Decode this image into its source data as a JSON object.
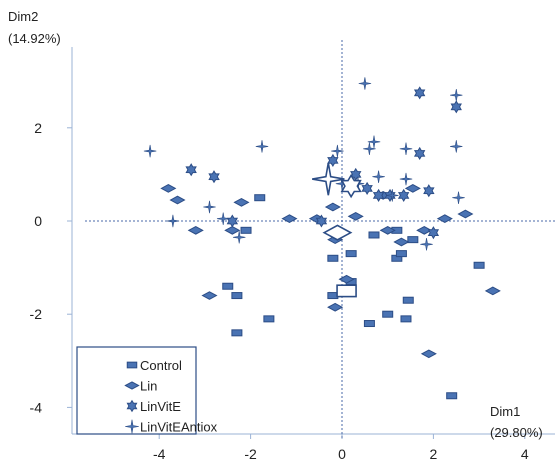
{
  "chart_data": {
    "type": "scatter",
    "title": "",
    "xlabel_lines": [
      "Dim1",
      "(29.80%)"
    ],
    "ylabel_lines": [
      "Dim2",
      "(14.92%)"
    ],
    "xlim": [
      -4.4,
      4.6
    ],
    "ylim": [
      -4.4,
      3.8
    ],
    "xticks": [
      -4,
      -2,
      0,
      2,
      4
    ],
    "yticks": [
      -4,
      -2,
      0,
      2
    ],
    "reference_lines": "dashed lines at x=0 and y=0",
    "grid": false,
    "legend_position": "bottom-left",
    "colors": {
      "series": "#4a73b3",
      "stroke": "#2c4d86",
      "centroid": "#4a73b3"
    },
    "series": [
      {
        "name": "Control",
        "marker": "rect",
        "points": [
          [
            -1.8,
            0.5
          ],
          [
            -2.1,
            -0.2
          ],
          [
            -2.5,
            -1.4
          ],
          [
            -2.3,
            -1.6
          ],
          [
            -2.3,
            -2.4
          ],
          [
            -1.6,
            -2.1
          ],
          [
            -0.2,
            -0.8
          ],
          [
            -0.2,
            -1.6
          ],
          [
            0.2,
            -1.3
          ],
          [
            0.2,
            -0.7
          ],
          [
            0.6,
            -2.2
          ],
          [
            0.7,
            -0.3
          ],
          [
            1.0,
            -2.0
          ],
          [
            1.2,
            -0.2
          ],
          [
            1.2,
            -0.8
          ],
          [
            1.3,
            -0.7
          ],
          [
            1.4,
            -2.1
          ],
          [
            1.45,
            -1.7
          ],
          [
            1.55,
            -0.4
          ],
          [
            2.4,
            -3.75
          ],
          [
            3.0,
            -0.95
          ]
        ]
      },
      {
        "name": "Lin",
        "marker": "diamond",
        "points": [
          [
            -3.8,
            0.7
          ],
          [
            -3.6,
            0.45
          ],
          [
            -3.2,
            -0.2
          ],
          [
            -2.9,
            -1.6
          ],
          [
            -2.4,
            -0.2
          ],
          [
            -2.2,
            0.4
          ],
          [
            -1.15,
            0.05
          ],
          [
            -0.55,
            0.05
          ],
          [
            -0.2,
            0.3
          ],
          [
            -0.15,
            -0.4
          ],
          [
            -0.15,
            -1.85
          ],
          [
            0.1,
            -1.25
          ],
          [
            0.3,
            0.1
          ],
          [
            0.9,
            0.55
          ],
          [
            1.0,
            -0.2
          ],
          [
            1.3,
            -0.45
          ],
          [
            1.55,
            0.7
          ],
          [
            1.8,
            -0.2
          ],
          [
            1.9,
            -2.85
          ],
          [
            2.25,
            0.05
          ],
          [
            2.7,
            0.15
          ],
          [
            3.3,
            -1.5
          ]
        ]
      },
      {
        "name": "LinVitE",
        "marker": "star",
        "points": [
          [
            -3.3,
            1.1
          ],
          [
            -2.8,
            0.95
          ],
          [
            -2.4,
            0.0
          ],
          [
            -0.45,
            0.0
          ],
          [
            -0.2,
            1.3
          ],
          [
            0.3,
            1.0
          ],
          [
            0.55,
            0.7
          ],
          [
            0.8,
            0.55
          ],
          [
            1.05,
            0.55
          ],
          [
            1.35,
            0.55
          ],
          [
            1.7,
            2.75
          ],
          [
            1.7,
            1.45
          ],
          [
            1.9,
            0.65
          ],
          [
            2.0,
            -0.25
          ],
          [
            2.5,
            2.45
          ]
        ]
      },
      {
        "name": "LinVitEAntiox",
        "marker": "plus",
        "points": [
          [
            -4.2,
            1.5
          ],
          [
            -3.7,
            0.0
          ],
          [
            -2.9,
            0.3
          ],
          [
            -2.6,
            0.05
          ],
          [
            -2.25,
            -0.35
          ],
          [
            -1.75,
            1.6
          ],
          [
            -0.1,
            1.5
          ],
          [
            0.0,
            0.8
          ],
          [
            0.35,
            0.8
          ],
          [
            0.5,
            2.95
          ],
          [
            0.6,
            1.55
          ],
          [
            0.7,
            1.7
          ],
          [
            0.8,
            0.95
          ],
          [
            1.1,
            0.55
          ],
          [
            1.4,
            0.9
          ],
          [
            1.4,
            1.55
          ],
          [
            1.85,
            -0.5
          ],
          [
            2.5,
            2.7
          ],
          [
            2.5,
            1.6
          ],
          [
            2.55,
            0.5
          ]
        ]
      }
    ],
    "centroids": [
      {
        "group": "Control",
        "marker": "rect",
        "x": 0.1,
        "y": -1.5
      },
      {
        "group": "Lin",
        "marker": "diamond",
        "x": -0.1,
        "y": -0.25
      },
      {
        "group": "LinVitE",
        "marker": "star",
        "x": 0.2,
        "y": 0.75
      },
      {
        "group": "LinVitEAntiox",
        "marker": "plus",
        "x": -0.3,
        "y": 0.9
      }
    ]
  }
}
